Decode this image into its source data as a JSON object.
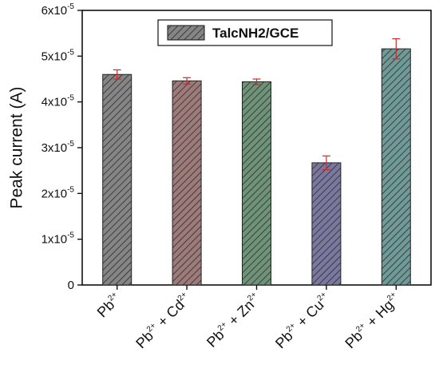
{
  "chart_data": {
    "type": "bar",
    "ylabel": "Peak current (A)",
    "ylim": [
      0,
      6e-05
    ],
    "yticks": [
      {
        "value": 0,
        "mantissa": "0",
        "exponent": ""
      },
      {
        "value": 1e-05,
        "mantissa": "1x10",
        "exponent": "-5"
      },
      {
        "value": 2e-05,
        "mantissa": "2x10",
        "exponent": "-5"
      },
      {
        "value": 3e-05,
        "mantissa": "3x10",
        "exponent": "-5"
      },
      {
        "value": 4e-05,
        "mantissa": "4x10",
        "exponent": "-5"
      },
      {
        "value": 5e-05,
        "mantissa": "5x10",
        "exponent": "-5"
      },
      {
        "value": 6e-05,
        "mantissa": "6x10",
        "exponent": "-5"
      }
    ],
    "categories": [
      {
        "parts": [
          [
            "Pb",
            ""
          ],
          [
            "2+",
            "sup"
          ]
        ]
      },
      {
        "parts": [
          [
            "Pb",
            ""
          ],
          [
            "2+",
            "sup"
          ],
          [
            " + Cd",
            ""
          ],
          [
            "2+",
            "sup"
          ]
        ]
      },
      {
        "parts": [
          [
            "Pb",
            ""
          ],
          [
            "2+",
            "sup"
          ],
          [
            " + Zn",
            ""
          ],
          [
            "2+",
            "sup"
          ]
        ]
      },
      {
        "parts": [
          [
            "Pb",
            ""
          ],
          [
            "2+",
            "sup"
          ],
          [
            " + Cu",
            ""
          ],
          [
            "2+",
            "sup"
          ]
        ]
      },
      {
        "parts": [
          [
            "Pb",
            ""
          ],
          [
            "2+",
            "sup"
          ],
          [
            " + Hg",
            ""
          ],
          [
            "2+",
            "sup"
          ]
        ]
      }
    ],
    "category_names": [
      "Pb2+",
      "Pb2+ + Cd2+",
      "Pb2+ + Zn2+",
      "Pb2+ + Cu2+",
      "Pb2+ + Hg2+"
    ],
    "series": [
      {
        "name": "TalcNH2/GCE",
        "values": [
          4.6e-05,
          4.46e-05,
          4.44e-05,
          2.67e-05,
          5.16e-05
        ],
        "errors": [
          1e-06,
          7e-07,
          6e-07,
          1.5e-06,
          2.2e-06
        ]
      }
    ],
    "bar_colors": [
      "#858585",
      "#9e7b7b",
      "#6f9378",
      "#7a789e",
      "#6f9a98"
    ],
    "error_color": "#cc2a2a",
    "legend": {
      "position": "top-right",
      "label": "TalcNH2/GCE"
    },
    "grid": false
  }
}
